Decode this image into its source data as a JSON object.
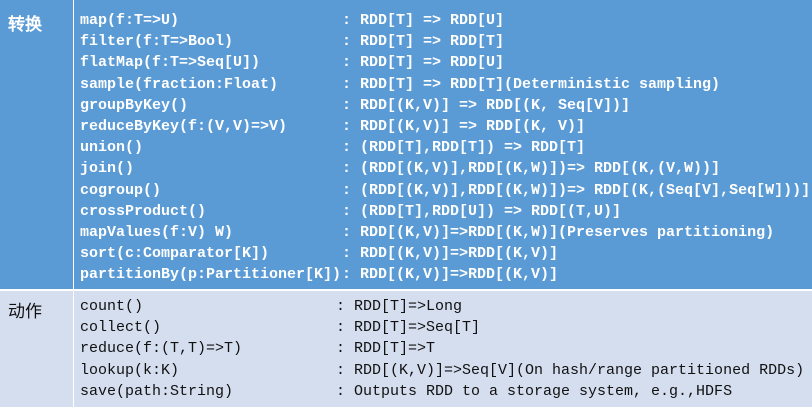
{
  "transformations": {
    "label": "转换",
    "rows": [
      {
        "op": "map(f:T=>U)",
        "sig": ": RDD[T] => RDD[U]"
      },
      {
        "op": "filter(f:T=>Bool)",
        "sig": ": RDD[T] => RDD[T]"
      },
      {
        "op": "flatMap(f:T=>Seq[U])",
        "sig": ": RDD[T] => RDD[U]"
      },
      {
        "op": "sample(fraction:Float)",
        "sig": ": RDD[T] => RDD[T](Deterministic sampling)"
      },
      {
        "op": "groupByKey()",
        "sig": ": RDD[(K,V)] => RDD[(K, Seq[V])]"
      },
      {
        "op": "reduceByKey(f:(V,V)=>V)",
        "sig": ": RDD[(K,V)] => RDD[(K, V)]"
      },
      {
        "op": "union()",
        "sig": ": (RDD[T],RDD[T]) => RDD[T]"
      },
      {
        "op": "join()",
        "sig": ": (RDD[(K,V)],RDD[(K,W)])=> RDD[(K,(V,W))]"
      },
      {
        "op": "cogroup()",
        "sig": ": (RDD[(K,V)],RDD[(K,W)])=> RDD[(K,(Seq[V],Seq[W]))]"
      },
      {
        "op": "crossProduct()",
        "sig": ": (RDD[T],RDD[U]) => RDD[(T,U)]"
      },
      {
        "op": "mapValues(f:V) W)",
        "sig": ": RDD[(K,V)]=>RDD[(K,W)](Preserves partitioning)"
      },
      {
        "op": "sort(c:Comparator[K])",
        "sig": ": RDD[(K,V)]=>RDD[(K,V)]"
      },
      {
        "op": "partitionBy(p:Partitioner[K])",
        "sig": ": RDD[(K,V)]=>RDD[(K,V)]"
      }
    ]
  },
  "actions": {
    "label": "动作",
    "rows": [
      {
        "op": "count()",
        "sig": ": RDD[T]=>Long"
      },
      {
        "op": "collect()",
        "sig": ": RDD[T]=>Seq[T]"
      },
      {
        "op": "reduce(f:(T,T)=>T)",
        "sig": ": RDD[T]=>T"
      },
      {
        "op": "lookup(k:K)",
        "sig": ": RDD[(K,V)]=>Seq[V](On hash/range partitioned RDDs)"
      },
      {
        "op": "save(path:String)",
        "sig": ": Outputs RDD to a storage system, e.g.,HDFS"
      }
    ]
  },
  "colors": {
    "transform_bg": "#5b9bd5",
    "action_bg": "#d5deef"
  }
}
